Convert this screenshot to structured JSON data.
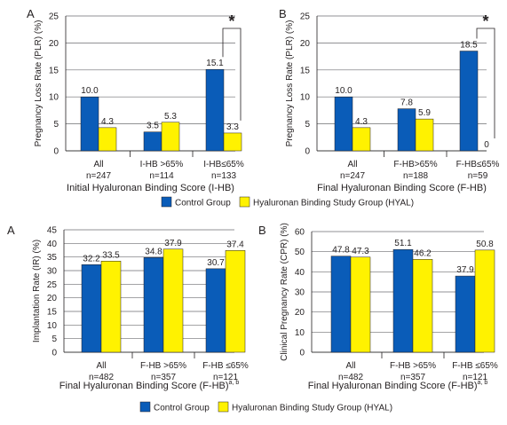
{
  "colors": {
    "control": "#0a5cb8",
    "hyal": "#fff200",
    "outline": "#231f20",
    "grid": "#6d6e71"
  },
  "legends": [
    {
      "items": [
        {
          "label": "Control Group"
        },
        {
          "label": "Hyaluronan Binding Study Group (HYAL)"
        }
      ]
    },
    {
      "items": [
        {
          "label": "Control Group"
        },
        {
          "label": "Hyaluronan Binding Study Group (HYAL)"
        }
      ]
    }
  ],
  "chart_data": [
    {
      "type": "bar",
      "panel_letter": "A",
      "xlabel": "Initial Hyaluronan Binding Score (I-HB)",
      "xlabel_sup": "",
      "ylabel": "Pregnancy Loss Rate (PLR) (%)",
      "ylim": [
        0,
        25
      ],
      "yticks": [
        "0",
        "5",
        "10",
        "15",
        "20",
        "25"
      ],
      "grid": true,
      "categories": [
        {
          "name": "All",
          "n": "n=247"
        },
        {
          "name": "I-HB >65%",
          "n": "n=114"
        },
        {
          "name": "I-HB≤65%",
          "n": "n=133"
        }
      ],
      "series": [
        {
          "values": [
            10.0,
            3.5,
            15.1
          ],
          "labels": [
            "10.0",
            "3.5",
            "15.1"
          ]
        },
        {
          "values": [
            4.3,
            5.3,
            3.3
          ],
          "labels": [
            "4.3",
            "5.3",
            "3.3"
          ]
        }
      ],
      "significance": {
        "group": 2,
        "label": "*"
      }
    },
    {
      "type": "bar",
      "panel_letter": "B",
      "xlabel": "Final Hyaluronan Binding Score (F-HB)",
      "xlabel_sup": "",
      "ylabel": "Pregnancy Loss Rate (PLR) (%)",
      "ylim": [
        0,
        25
      ],
      "yticks": [
        "0",
        "5",
        "10",
        "15",
        "20",
        "25"
      ],
      "grid": true,
      "categories": [
        {
          "name": "All",
          "n": "n=247"
        },
        {
          "name": "F-HB>65%",
          "n": "n=188"
        },
        {
          "name": "F-HB≤65%",
          "n": "n=59"
        }
      ],
      "series": [
        {
          "values": [
            10.0,
            7.8,
            18.5
          ],
          "labels": [
            "10.0",
            "7.8",
            "18.5"
          ]
        },
        {
          "values": [
            4.3,
            5.9,
            0
          ],
          "labels": [
            "4.3",
            "5.9",
            "0"
          ]
        }
      ],
      "significance": {
        "group": 2,
        "label": "*"
      }
    },
    {
      "type": "bar",
      "panel_letter": "A",
      "xlabel": "Final Hyaluronan Binding Score (F-HB)",
      "xlabel_sup": "a, b",
      "ylabel": "Implantation Rate (IR) (%)",
      "ylim": [
        0,
        45
      ],
      "yticks": [
        "0",
        "5",
        "10",
        "15",
        "20",
        "25",
        "30",
        "35",
        "40",
        "45"
      ],
      "grid": true,
      "categories": [
        {
          "name": "All",
          "n": "n=482"
        },
        {
          "name": "F-HB >65%",
          "n": "n=357"
        },
        {
          "name": "F-HB ≤65%",
          "n": "n=121"
        }
      ],
      "series": [
        {
          "values": [
            32.2,
            34.8,
            30.7
          ],
          "labels": [
            "32.2",
            "34.8",
            "30.7"
          ]
        },
        {
          "values": [
            33.5,
            37.9,
            37.4
          ],
          "labels": [
            "33.5",
            "37.9",
            "37.4"
          ]
        }
      ]
    },
    {
      "type": "bar",
      "panel_letter": "B",
      "xlabel": "Final Hyaluronan Binding Score (F-HB)",
      "xlabel_sup": "a, b",
      "ylabel": "Clinical Pregnancy Rate (CPR) (%)",
      "ylim": [
        0,
        60
      ],
      "yticks": [
        "0",
        "10",
        "20",
        "30",
        "40",
        "50",
        "60"
      ],
      "grid": true,
      "categories": [
        {
          "name": "All",
          "n": "n=482"
        },
        {
          "name": "F-HB >65%",
          "n": "n=357"
        },
        {
          "name": "F-HB ≤65%",
          "n": "n=121"
        }
      ],
      "series": [
        {
          "values": [
            47.8,
            51.1,
            37.9
          ],
          "labels": [
            "47.8",
            "51.1",
            "37.9"
          ]
        },
        {
          "values": [
            47.3,
            46.2,
            50.8
          ],
          "labels": [
            "47.3",
            "46.2",
            "50.8"
          ]
        }
      ]
    }
  ]
}
